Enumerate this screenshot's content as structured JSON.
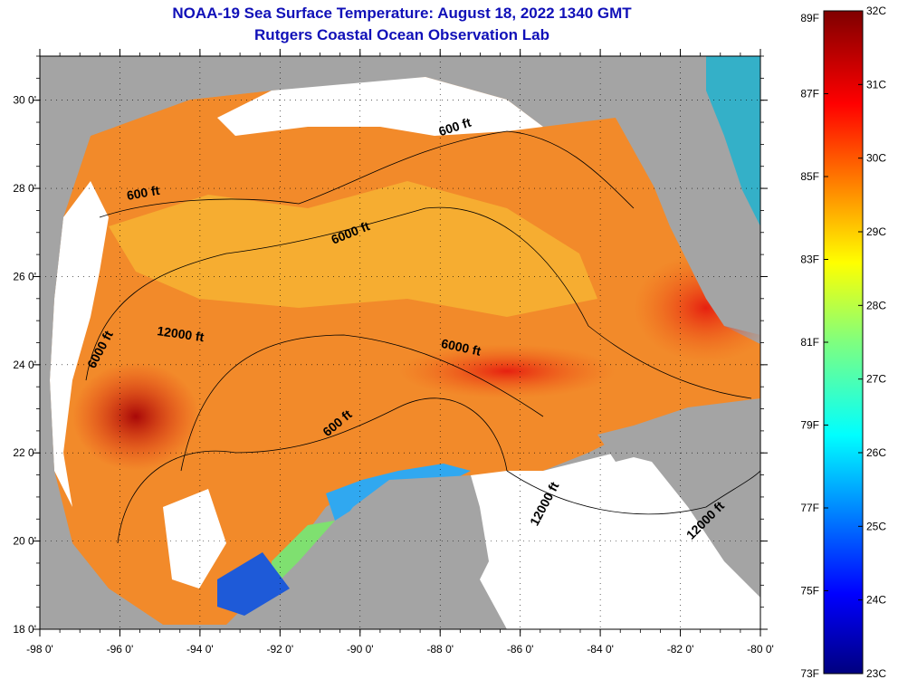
{
  "title": {
    "line1": "NOAA-19 Sea Surface Temperature:  August 18, 2022 1340 GMT",
    "line2": "Rutgers Coastal Ocean Observation Lab"
  },
  "map": {
    "lon_range": [
      -98,
      -80
    ],
    "lat_range": [
      18,
      31
    ],
    "lon_ticks": [
      {
        "value": -98,
        "label": "-98 0'"
      },
      {
        "value": -96,
        "label": "-96 0'"
      },
      {
        "value": -94,
        "label": "-94 0'"
      },
      {
        "value": -92,
        "label": "-92 0'"
      },
      {
        "value": -90,
        "label": "-90 0'"
      },
      {
        "value": -88,
        "label": "-88 0'"
      },
      {
        "value": -86,
        "label": "-86 0'"
      },
      {
        "value": -84,
        "label": "-84 0'"
      },
      {
        "value": -82,
        "label": "-82 0'"
      },
      {
        "value": -80,
        "label": "-80 0'"
      }
    ],
    "lat_ticks": [
      {
        "value": 30,
        "label": "30 0'"
      },
      {
        "value": 28,
        "label": "28 0'"
      },
      {
        "value": 26,
        "label": "26 0'"
      },
      {
        "value": 24,
        "label": "24 0'"
      },
      {
        "value": 22,
        "label": "22 0'"
      },
      {
        "value": 20,
        "label": "20 0'"
      },
      {
        "value": 18,
        "label": "18 0'"
      }
    ],
    "contour_labels": [
      {
        "text": "600 ft",
        "lon": -87.6,
        "lat": 29.3,
        "angle": -18
      },
      {
        "text": "600 ft",
        "lon": -95.4,
        "lat": 27.8,
        "angle": -10
      },
      {
        "text": "6000 ft",
        "lon": -90.2,
        "lat": 26.9,
        "angle": -22
      },
      {
        "text": "12000 ft",
        "lon": -94.5,
        "lat": 24.6,
        "angle": 8
      },
      {
        "text": "6000 ft",
        "lon": -87.5,
        "lat": 24.3,
        "angle": 12
      },
      {
        "text": "6000 ft",
        "lon": -96.4,
        "lat": 24.3,
        "angle": -62
      },
      {
        "text": "600 ft",
        "lon": -90.5,
        "lat": 22.6,
        "angle": -40
      },
      {
        "text": "12000 ft",
        "lon": -85.3,
        "lat": 20.8,
        "angle": -62
      },
      {
        "text": "12000 ft",
        "lon": -81.3,
        "lat": 20.4,
        "angle": -45
      }
    ]
  },
  "colorbar": {
    "fahrenheit": [
      {
        "value": "89F"
      },
      {
        "value": "87F"
      },
      {
        "value": "85F"
      },
      {
        "value": "83F"
      },
      {
        "value": "81F"
      },
      {
        "value": "79F"
      },
      {
        "value": "77F"
      },
      {
        "value": "75F"
      },
      {
        "value": "73F"
      }
    ],
    "celsius": [
      {
        "value": "32C"
      },
      {
        "value": "31C"
      },
      {
        "value": "30C"
      },
      {
        "value": "29C"
      },
      {
        "value": "28C"
      },
      {
        "value": "27C"
      },
      {
        "value": "26C"
      },
      {
        "value": "25C"
      },
      {
        "value": "24C"
      },
      {
        "value": "23C"
      }
    ]
  },
  "colors": {
    "land": "#a4a4a4",
    "cloud": "#ffffff",
    "title": "#1010b8"
  }
}
